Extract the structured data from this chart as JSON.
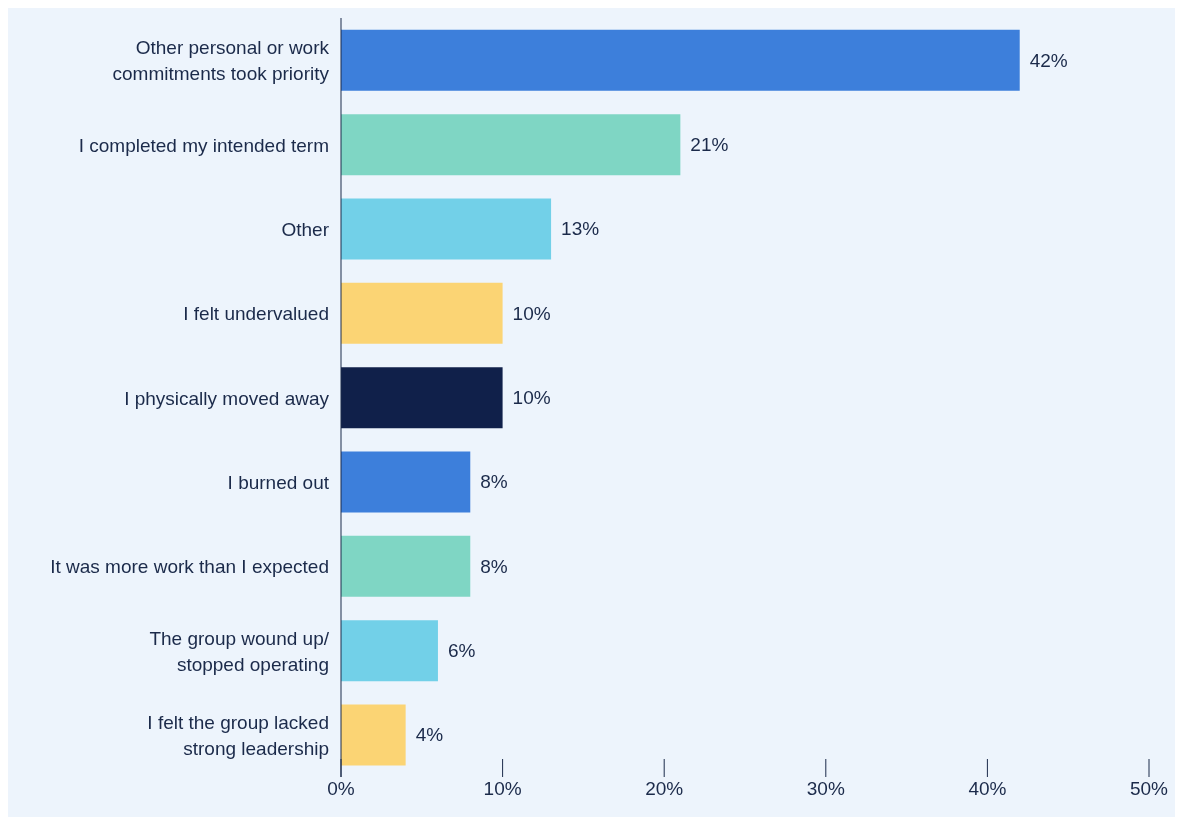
{
  "chart_data": {
    "type": "bar",
    "orientation": "horizontal",
    "categories": [
      "Other personal or work commitments took priority",
      "I completed my intended term",
      "Other",
      "I felt undervalued",
      "I physically moved away",
      "I burned out",
      "It was more work than I expected",
      "The group wound up/ stopped operating",
      "I felt the group lacked strong leadership"
    ],
    "values": [
      42,
      21,
      13,
      10,
      10,
      8,
      8,
      6,
      4
    ],
    "colors": [
      "#3d7fdb",
      "#7fd6c4",
      "#72d0e8",
      "#fbd474",
      "#10204a",
      "#3d7fdb",
      "#7fd6c4",
      "#72d0e8",
      "#fbd474"
    ],
    "value_labels": [
      "42%",
      "21%",
      "13%",
      "10%",
      "10%",
      "8%",
      "8%",
      "6%",
      "4%"
    ],
    "xlim": [
      0,
      50
    ],
    "xticks": [
      {
        "value": 0,
        "label": "0%"
      },
      {
        "value": 10,
        "label": "10%"
      },
      {
        "value": 20,
        "label": "20%"
      },
      {
        "value": 30,
        "label": "30%"
      },
      {
        "value": 40,
        "label": "40%"
      },
      {
        "value": 50,
        "label": "50%"
      }
    ]
  }
}
